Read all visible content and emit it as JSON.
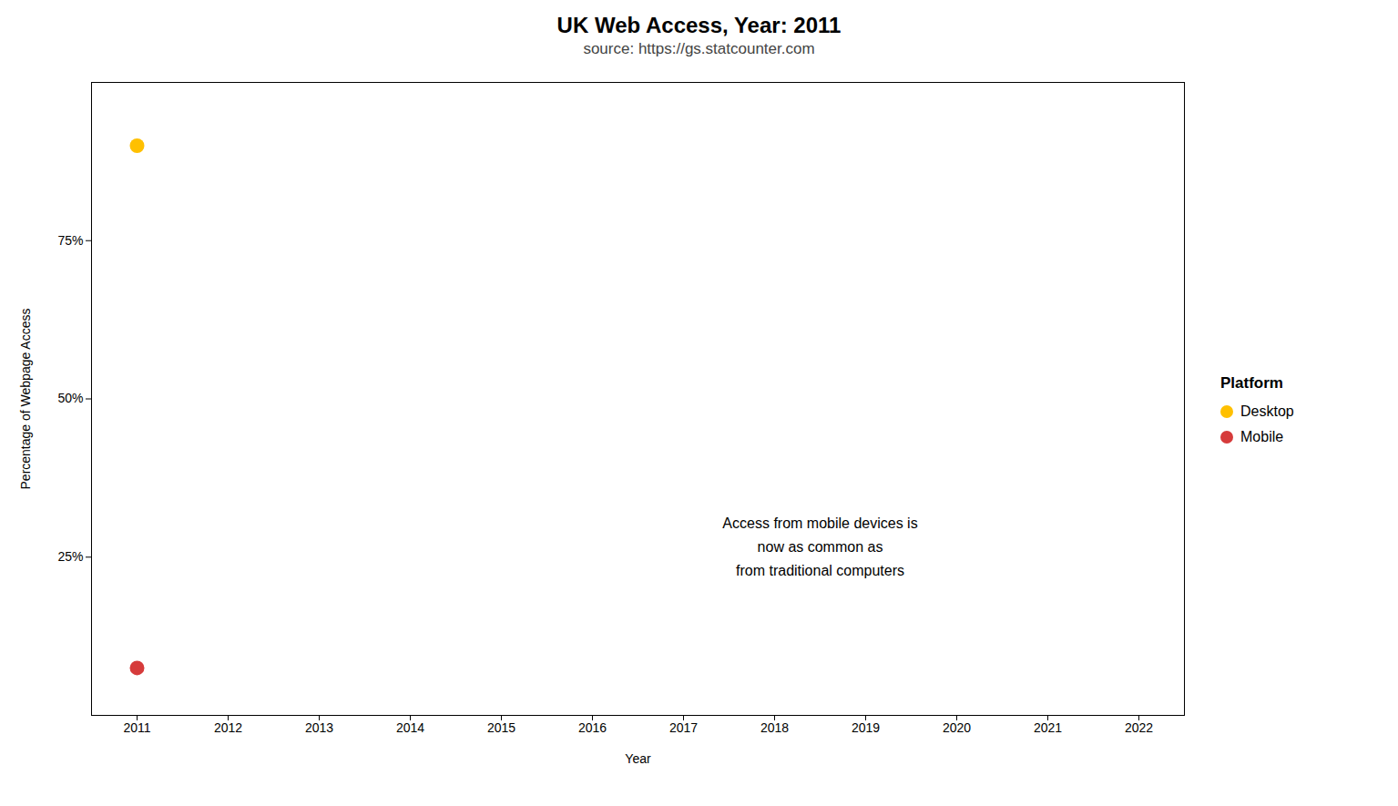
{
  "chart_data": {
    "type": "line",
    "title": "UK Web Access, Year: 2011",
    "subtitle": "source: https://gs.statcounter.com",
    "x_label": "Year",
    "y_label": "Percentage of Webpage Access",
    "x": [
      2011
    ],
    "series": [
      {
        "name": "Desktop",
        "color": "#FFC000",
        "values": [
          90.0
        ]
      },
      {
        "name": "Mobile",
        "color": "#D63B3B",
        "values": [
          7.5
        ]
      }
    ],
    "marker": "circle",
    "legend_title": "Platform",
    "legend": "right",
    "grid": false,
    "xlim": [
      2010.5,
      2022.5
    ],
    "xticks": [
      2011,
      2012,
      2013,
      2014,
      2015,
      2016,
      2017,
      2018,
      2019,
      2020,
      2021,
      2022
    ],
    "ylim": [
      0,
      100
    ],
    "yticks": [
      {
        "value": 25,
        "label": "25%"
      },
      {
        "value": 50,
        "label": "50%"
      },
      {
        "value": 75,
        "label": "75%"
      }
    ],
    "annotations": [
      {
        "text": "Access from mobile devices is\nnow as common as\nfrom traditional computers",
        "x": 2018.5,
        "y": 27
      }
    ]
  }
}
